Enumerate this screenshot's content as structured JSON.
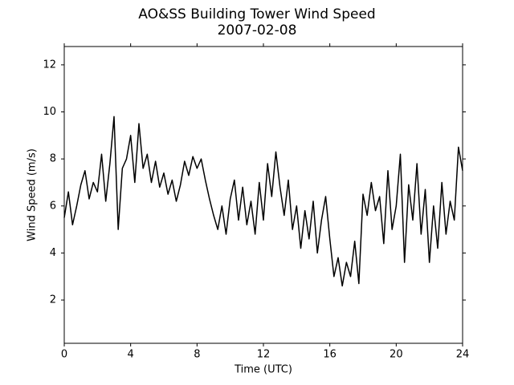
{
  "chart_data": {
    "type": "line",
    "title": "AO&SS Building Tower Wind Speed",
    "subtitle": "2007-02-08",
    "x_label": "Time (UTC)",
    "y_label": "Wind Speed (m/s)",
    "x": [
      0,
      0.25,
      0.5,
      0.75,
      1,
      1.25,
      1.5,
      1.75,
      2,
      2.25,
      2.5,
      2.75,
      3,
      3.25,
      3.5,
      3.75,
      4,
      4.25,
      4.5,
      4.75,
      5,
      5.25,
      5.5,
      5.75,
      6,
      6.25,
      6.5,
      6.75,
      7,
      7.25,
      7.5,
      7.75,
      8,
      8.25,
      8.5,
      8.75,
      9,
      9.25,
      9.5,
      9.75,
      10,
      10.25,
      10.5,
      10.75,
      11,
      11.25,
      11.5,
      11.75,
      12,
      12.25,
      12.5,
      12.75,
      13,
      13.25,
      13.5,
      13.75,
      14,
      14.25,
      14.5,
      14.75,
      15,
      15.25,
      15.5,
      15.75,
      16,
      16.25,
      16.5,
      16.75,
      17,
      17.25,
      17.5,
      17.75,
      18,
      18.25,
      18.5,
      18.75,
      19,
      19.25,
      19.5,
      19.75,
      20,
      20.25,
      20.5,
      20.75,
      21,
      21.25,
      21.5,
      21.75,
      22,
      22.25,
      22.5,
      22.75,
      23,
      23.25,
      23.5,
      23.75,
      24
    ],
    "series": [
      {
        "name": "Wind Speed",
        "color": "#000000",
        "values": [
          5.5,
          6.6,
          5.2,
          6.0,
          6.9,
          7.5,
          6.3,
          7.0,
          6.6,
          8.2,
          6.2,
          7.8,
          9.8,
          5.0,
          7.6,
          8.0,
          9.0,
          7.0,
          9.5,
          7.6,
          8.2,
          7.0,
          7.9,
          6.8,
          7.4,
          6.5,
          7.1,
          6.2,
          6.9,
          7.9,
          7.3,
          8.1,
          7.6,
          8.0,
          7.1,
          6.3,
          5.6,
          5.0,
          6.0,
          4.8,
          6.3,
          7.1,
          5.4,
          6.8,
          5.2,
          6.2,
          4.8,
          7.0,
          5.4,
          7.8,
          6.4,
          8.3,
          6.8,
          5.6,
          7.1,
          5.0,
          6.0,
          4.2,
          5.8,
          4.6,
          6.2,
          4.0,
          5.4,
          6.4,
          4.6,
          3.0,
          3.8,
          2.6,
          3.6,
          3.0,
          4.5,
          2.7,
          6.5,
          5.6,
          7.0,
          5.8,
          6.4,
          4.4,
          7.5,
          5.0,
          6.0,
          8.2,
          3.6,
          6.9,
          5.4,
          7.8,
          4.8,
          6.7,
          3.6,
          6.0,
          4.2,
          7.0,
          4.8,
          6.2,
          5.4,
          8.5,
          7.5
        ]
      }
    ],
    "xlim": [
      0,
      24
    ],
    "xticks": [
      0,
      4,
      8,
      12,
      16,
      20,
      24
    ],
    "ylim": [
      0.16,
      12.78
    ],
    "yticks": [
      2,
      4,
      6,
      8,
      10,
      12
    ],
    "grid": false
  }
}
